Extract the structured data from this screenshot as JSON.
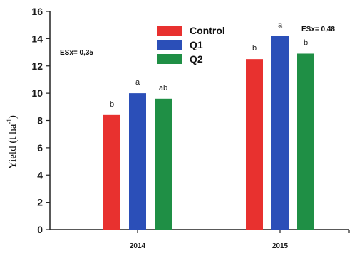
{
  "chart_data": {
    "type": "bar",
    "categories": [
      "2014",
      "2015"
    ],
    "series": [
      {
        "name": "Control",
        "color": "#e8312f",
        "values": [
          8.4,
          12.5
        ],
        "letters": [
          "b",
          "b"
        ]
      },
      {
        "name": "Q1",
        "color": "#2b4fb8",
        "values": [
          10.0,
          14.2
        ],
        "letters": [
          "a",
          "a"
        ]
      },
      {
        "name": "Q2",
        "color": "#1f8f45",
        "values": [
          9.6,
          12.9
        ],
        "letters": [
          "ab",
          "b"
        ]
      }
    ],
    "ylabel": "Yield (t ha",
    "ylabel_sup": "-1",
    "ylabel_close": ")",
    "ylim": [
      0,
      16
    ],
    "yticks": [
      0,
      2,
      4,
      6,
      8,
      10,
      12,
      14,
      16
    ],
    "se_labels": [
      "ESx= 0,35",
      "ESx= 0,48"
    ],
    "legend": "top-center"
  }
}
